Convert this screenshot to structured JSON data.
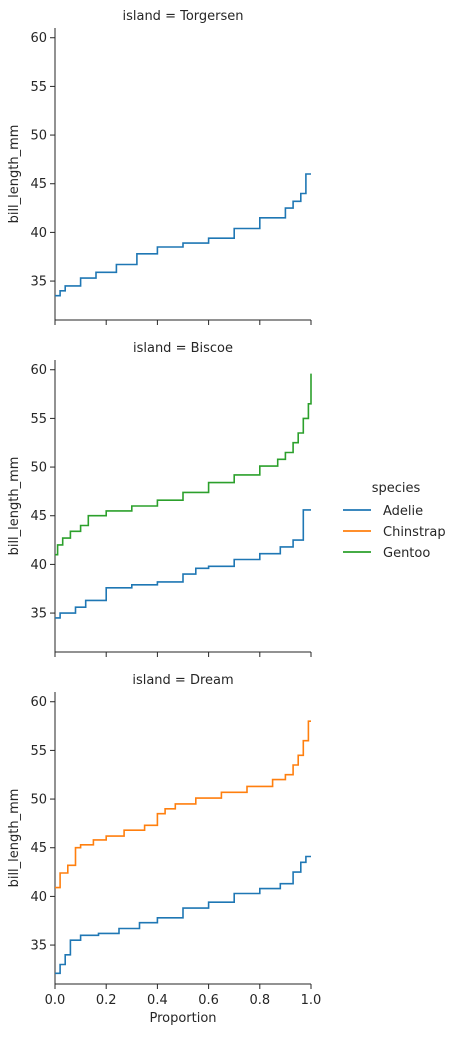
{
  "chart_data": [
    {
      "type": "line",
      "subtype": "ecdf-step",
      "title": "island = Torgersen",
      "xlabel": "",
      "ylabel": "bill_length_mm",
      "xlim": [
        0,
        1
      ],
      "ylim": [
        31,
        61
      ],
      "yticks": [
        35,
        40,
        45,
        50,
        55,
        60
      ],
      "xticks": [
        0,
        0.2,
        0.4,
        0.6,
        0.8,
        1.0
      ],
      "series": [
        {
          "name": "Adelie",
          "color": "#1f77b4",
          "x": [
            0,
            0.02,
            0.04,
            0.1,
            0.16,
            0.24,
            0.32,
            0.4,
            0.5,
            0.6,
            0.7,
            0.8,
            0.9,
            0.93,
            0.96,
            0.98,
            1.0
          ],
          "y": [
            33.5,
            34.0,
            34.5,
            35.3,
            35.9,
            36.7,
            37.8,
            38.5,
            38.9,
            39.4,
            40.4,
            41.5,
            42.5,
            43.2,
            44.0,
            46.0,
            46.0
          ]
        }
      ]
    },
    {
      "type": "line",
      "subtype": "ecdf-step",
      "title": "island = Biscoe",
      "xlabel": "",
      "ylabel": "bill_length_mm",
      "xlim": [
        0,
        1
      ],
      "ylim": [
        31,
        61
      ],
      "yticks": [
        35,
        40,
        45,
        50,
        55,
        60
      ],
      "xticks": [
        0,
        0.2,
        0.4,
        0.6,
        0.8,
        1.0
      ],
      "series": [
        {
          "name": "Adelie",
          "color": "#1f77b4",
          "x": [
            0,
            0.02,
            0.08,
            0.12,
            0.2,
            0.3,
            0.4,
            0.5,
            0.55,
            0.6,
            0.7,
            0.8,
            0.88,
            0.93,
            0.97,
            1.0
          ],
          "y": [
            34.5,
            35.0,
            35.6,
            36.3,
            37.6,
            37.9,
            38.2,
            39.0,
            39.6,
            39.8,
            40.5,
            41.1,
            41.8,
            42.5,
            45.6,
            45.6
          ]
        },
        {
          "name": "Gentoo",
          "color": "#2ca02c",
          "x": [
            0,
            0.01,
            0.03,
            0.06,
            0.1,
            0.13,
            0.2,
            0.3,
            0.4,
            0.5,
            0.6,
            0.7,
            0.8,
            0.87,
            0.9,
            0.93,
            0.95,
            0.97,
            0.99,
            1.0
          ],
          "y": [
            41.0,
            42.0,
            42.7,
            43.4,
            44.0,
            45.0,
            45.5,
            46.0,
            46.6,
            47.4,
            48.4,
            49.2,
            50.1,
            50.8,
            51.5,
            52.5,
            53.5,
            55.0,
            56.5,
            59.6
          ]
        }
      ]
    },
    {
      "type": "line",
      "subtype": "ecdf-step",
      "title": "island = Dream",
      "xlabel": "Proportion",
      "ylabel": "bill_length_mm",
      "xlim": [
        0,
        1
      ],
      "ylim": [
        31,
        61
      ],
      "yticks": [
        35,
        40,
        45,
        50,
        55,
        60
      ],
      "xticks": [
        0,
        0.2,
        0.4,
        0.6,
        0.8,
        1.0
      ],
      "xticklabels": [
        "0.0",
        "0.2",
        "0.4",
        "0.6",
        "0.8",
        "1.0"
      ],
      "series": [
        {
          "name": "Adelie",
          "color": "#1f77b4",
          "x": [
            0,
            0.02,
            0.04,
            0.06,
            0.1,
            0.17,
            0.25,
            0.33,
            0.4,
            0.5,
            0.6,
            0.7,
            0.8,
            0.88,
            0.93,
            0.96,
            0.98,
            1.0
          ],
          "y": [
            32.1,
            33.0,
            34.0,
            35.5,
            36.0,
            36.2,
            36.7,
            37.3,
            37.8,
            38.8,
            39.4,
            40.3,
            40.8,
            41.3,
            42.5,
            43.5,
            44.1,
            44.1
          ]
        },
        {
          "name": "Chinstrap",
          "color": "#ff7f0e",
          "x": [
            0,
            0.02,
            0.05,
            0.08,
            0.1,
            0.15,
            0.2,
            0.27,
            0.35,
            0.4,
            0.43,
            0.47,
            0.55,
            0.65,
            0.75,
            0.85,
            0.9,
            0.93,
            0.95,
            0.97,
            0.99,
            1.0
          ],
          "y": [
            40.9,
            42.4,
            43.2,
            45.0,
            45.3,
            45.8,
            46.2,
            46.8,
            47.3,
            48.5,
            49.0,
            49.5,
            50.1,
            50.7,
            51.3,
            52.0,
            52.5,
            53.5,
            54.5,
            56.0,
            58.0,
            58.0
          ]
        }
      ]
    }
  ],
  "legend": {
    "title": "species",
    "placement": "center-right",
    "entries": [
      {
        "name": "Adelie",
        "color": "#1f77b4"
      },
      {
        "name": "Chinstrap",
        "color": "#ff7f0e"
      },
      {
        "name": "Gentoo",
        "color": "#2ca02c"
      }
    ]
  }
}
